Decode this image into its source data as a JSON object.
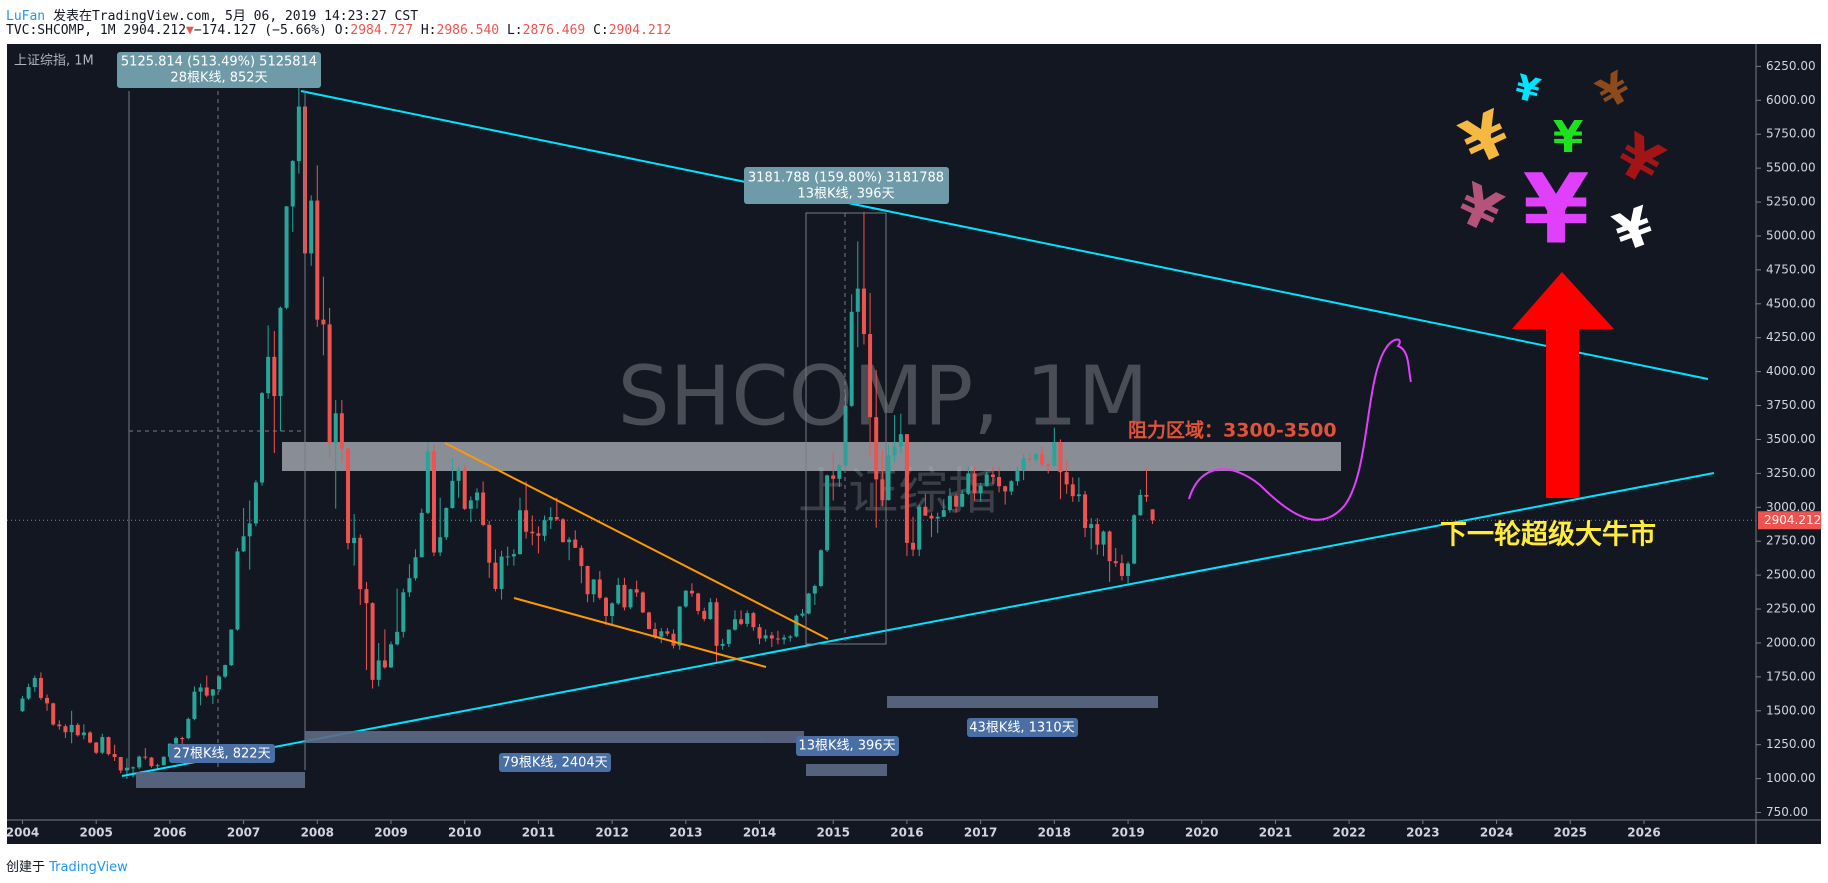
{
  "header": {
    "author": "LuFan",
    "published": "发表在TradingView.com, 5月 06, 2019 14:23:27 CST",
    "symbol": "TVC:SHCOMP, 1M",
    "last": "2904.212",
    "arrow": "▼",
    "change": "−174.127 (−5.66%)",
    "ohlc": [
      {
        "label": "O:",
        "value": "2984.727"
      },
      {
        "label": "H:",
        "value": "2986.540"
      },
      {
        "label": "L:",
        "value": "2876.469"
      },
      {
        "label": "C:",
        "value": "2904.212"
      }
    ]
  },
  "footer": {
    "created": "创建于",
    "brand": "TradingView"
  },
  "chart_data": {
    "type": "candlestick",
    "title": "上证综指, 1M",
    "up_color": "#26a69a",
    "down_color": "#ef5350",
    "grid": false,
    "xlim": [
      2003.79,
      2027.52
    ],
    "xticks": [
      2004,
      2005,
      2006,
      2007,
      2008,
      2009,
      2010,
      2011,
      2012,
      2013,
      2014,
      2015,
      2016,
      2017,
      2018,
      2019,
      2020,
      2021,
      2022,
      2023,
      2024,
      2025,
      2026
    ],
    "ylim": [
      695,
      6415
    ],
    "yticks": [
      {
        "value": 750,
        "label": "750.00"
      },
      {
        "value": 1000,
        "label": "1000.00"
      },
      {
        "value": 1250,
        "label": "1250.00"
      },
      {
        "value": 1500,
        "label": "1500.00"
      },
      {
        "value": 1750,
        "label": "1750.00"
      },
      {
        "value": 2000,
        "label": "2000.00"
      },
      {
        "value": 2250,
        "label": "2250.00"
      },
      {
        "value": 2500,
        "label": "2500.00"
      },
      {
        "value": 2750,
        "label": "2750.00"
      },
      {
        "value": 3000,
        "label": "3000.00"
      },
      {
        "value": 3250,
        "label": "3250.00"
      },
      {
        "value": 3500,
        "label": "3500.00"
      },
      {
        "value": 3750,
        "label": "3750.00"
      },
      {
        "value": 4000,
        "label": "4000.00"
      },
      {
        "value": 4250,
        "label": "4250.00"
      },
      {
        "value": 4500,
        "label": "4500.00"
      },
      {
        "value": 4750,
        "label": "4750.00"
      },
      {
        "value": 5000,
        "label": "5000.00"
      },
      {
        "value": 5250,
        "label": "5250.00"
      },
      {
        "value": 5500,
        "label": "5500.00"
      },
      {
        "value": 5750,
        "label": "5750.00"
      },
      {
        "value": 6000,
        "label": "6000.00"
      },
      {
        "value": 6250,
        "label": "6250.00"
      }
    ],
    "last_price": 2904.212,
    "last_price_color": "#ef5350",
    "x": [
      2004,
      2004.083,
      2004.167,
      2004.25,
      2004.333,
      2004.417,
      2004.5,
      2004.583,
      2004.667,
      2004.75,
      2004.833,
      2004.917,
      2005,
      2005.083,
      2005.167,
      2005.25,
      2005.333,
      2005.417,
      2005.5,
      2005.583,
      2005.667,
      2005.75,
      2005.833,
      2005.917,
      2006,
      2006.083,
      2006.167,
      2006.25,
      2006.333,
      2006.417,
      2006.5,
      2006.583,
      2006.667,
      2006.75,
      2006.833,
      2006.917,
      2007,
      2007.083,
      2007.167,
      2007.25,
      2007.333,
      2007.417,
      2007.5,
      2007.583,
      2007.667,
      2007.75,
      2007.833,
      2007.917,
      2008,
      2008.083,
      2008.167,
      2008.25,
      2008.333,
      2008.417,
      2008.5,
      2008.583,
      2008.667,
      2008.75,
      2008.833,
      2008.917,
      2009,
      2009.083,
      2009.167,
      2009.25,
      2009.333,
      2009.417,
      2009.5,
      2009.583,
      2009.667,
      2009.75,
      2009.833,
      2009.917,
      2010,
      2010.083,
      2010.167,
      2010.25,
      2010.333,
      2010.417,
      2010.5,
      2010.583,
      2010.667,
      2010.75,
      2010.833,
      2010.917,
      2011,
      2011.083,
      2011.167,
      2011.25,
      2011.333,
      2011.417,
      2011.5,
      2011.583,
      2011.667,
      2011.75,
      2011.833,
      2011.917,
      2012,
      2012.083,
      2012.167,
      2012.25,
      2012.333,
      2012.417,
      2012.5,
      2012.583,
      2012.667,
      2012.75,
      2012.833,
      2012.917,
      2013,
      2013.083,
      2013.167,
      2013.25,
      2013.333,
      2013.417,
      2013.5,
      2013.583,
      2013.667,
      2013.75,
      2013.833,
      2013.917,
      2014,
      2014.083,
      2014.167,
      2014.25,
      2014.333,
      2014.417,
      2014.5,
      2014.583,
      2014.667,
      2014.75,
      2014.833,
      2014.917,
      2015,
      2015.083,
      2015.167,
      2015.25,
      2015.333,
      2015.417,
      2015.5,
      2015.583,
      2015.667,
      2015.75,
      2015.833,
      2015.917,
      2016,
      2016.083,
      2016.167,
      2016.25,
      2016.333,
      2016.417,
      2016.5,
      2016.583,
      2016.667,
      2016.75,
      2016.833,
      2016.917,
      2017,
      2017.083,
      2017.167,
      2017.25,
      2017.333,
      2017.417,
      2017.5,
      2017.583,
      2017.667,
      2017.75,
      2017.833,
      2017.917,
      2018,
      2018.083,
      2018.167,
      2018.25,
      2018.333,
      2018.417,
      2018.5,
      2018.583,
      2018.667,
      2018.75,
      2018.833,
      2018.917,
      2019,
      2019.083,
      2019.167,
      2019.25,
      2019.333
    ],
    "open": [
      1497,
      1590,
      1675,
      1742,
      1595,
      1555,
      1399,
      1386,
      1342,
      1396,
      1320,
      1340,
      1266,
      1191,
      1306,
      1181,
      1159,
      1060,
      1080,
      1083,
      1162,
      1155,
      1092,
      1099,
      1161,
      1258,
      1299,
      1298,
      1440,
      1641,
      1672,
      1612,
      1658,
      1752,
      1837,
      2099,
      2675,
      2786,
      2881,
      3183,
      3841,
      4109,
      3820,
      4471,
      5218,
      5552,
      5954,
      4871,
      5261,
      4383,
      4348,
      3472,
      3693,
      3433,
      2736,
      2775,
      2397,
      2293,
      1728,
      1871,
      1820,
      1990,
      2082,
      2373,
      2477,
      2632,
      2959,
      3412,
      2667,
      2779,
      2995,
      3195,
      3277,
      2989,
      3051,
      3109,
      2870,
      2592,
      2398,
      2637,
      2638,
      2655,
      2978,
      2820,
      2808,
      2790,
      2905,
      2928,
      2911,
      2743,
      2762,
      2701,
      2567,
      2359,
      2468,
      2333,
      2199,
      2292,
      2428,
      2262,
      2396,
      2372,
      2225,
      2103,
      2047,
      2086,
      2068,
      1980,
      2269,
      2385,
      2365,
      2236,
      2177,
      2300,
      1979,
      1993,
      2098,
      2175,
      2141,
      2220,
      2116,
      2033,
      2056,
      2033,
      2026,
      2039,
      2048,
      2201,
      2217,
      2364,
      2420,
      2683,
      3235,
      3210,
      3310,
      3748,
      4441,
      4612,
      4277,
      3664,
      3206,
      3053,
      3383,
      3445,
      3539,
      2738,
      2688,
      3004,
      2938,
      2917,
      2930,
      2979,
      3085,
      3005,
      3100,
      3250,
      3104,
      3159,
      3242,
      3223,
      3155,
      3117,
      3192,
      3273,
      3361,
      3349,
      3393,
      3317,
      3307,
      3481,
      3259,
      3169,
      3082,
      3095,
      2847,
      2876,
      2725,
      2821,
      2603,
      2588,
      2494,
      2585,
      2941,
      3091,
      2984.727
    ],
    "high": [
      1610,
      1700,
      1760,
      1783,
      1620,
      1560,
      1430,
      1400,
      1500,
      1410,
      1400,
      1350,
      1270,
      1330,
      1310,
      1250,
      1160,
      1150,
      1090,
      1170,
      1225,
      1160,
      1110,
      1165,
      1260,
      1310,
      1310,
      1450,
      1680,
      1700,
      1760,
      1660,
      1760,
      1840,
      2100,
      2700,
      2995,
      3050,
      3200,
      3850,
      4340,
      4300,
      4480,
      5220,
      5560,
      6124,
      5970,
      5300,
      5520,
      4700,
      4470,
      3790,
      3790,
      3440,
      2950,
      2800,
      2450,
      2300,
      2000,
      2100,
      2010,
      2400,
      2400,
      2580,
      2690,
      2990,
      3480,
      3460,
      3070,
      3000,
      3360,
      3300,
      3310,
      3080,
      3140,
      3190,
      2900,
      2690,
      2680,
      2710,
      2690,
      3070,
      3190,
      2940,
      2860,
      2940,
      3000,
      3070,
      2920,
      2780,
      2830,
      2720,
      2570,
      2470,
      2530,
      2340,
      2300,
      2480,
      2480,
      2400,
      2460,
      2380,
      2230,
      2150,
      2110,
      2110,
      2100,
      2270,
      2390,
      2440,
      2370,
      2260,
      2330,
      2330,
      2030,
      2100,
      2240,
      2240,
      2240,
      2230,
      2140,
      2100,
      2080,
      2090,
      2060,
      2060,
      2210,
      2250,
      2370,
      2430,
      2690,
      3240,
      3410,
      3320,
      3840,
      4570,
      4960,
      5178,
      4580,
      4010,
      3420,
      3460,
      3680,
      3690,
      3540,
      2930,
      3020,
      3100,
      2960,
      2960,
      3060,
      3140,
      3100,
      3130,
      3300,
      3300,
      3180,
      3260,
      3300,
      3300,
      3160,
      3200,
      3300,
      3390,
      3400,
      3400,
      3450,
      3330,
      3587,
      3500,
      3340,
      3220,
      3220,
      3120,
      2920,
      2920,
      2830,
      2830,
      2700,
      2650,
      2600,
      2950,
      3130,
      3288,
      2986.54
    ],
    "low": [
      1490,
      1580,
      1640,
      1580,
      1500,
      1390,
      1360,
      1300,
      1260,
      1310,
      1290,
      1260,
      1180,
      1180,
      1170,
      1130,
      1040,
      998,
      1010,
      1070,
      1140,
      1080,
      1070,
      1095,
      1150,
      1250,
      1240,
      1290,
      1430,
      1540,
      1600,
      1550,
      1640,
      1740,
      1830,
      2090,
      2670,
      2540,
      2860,
      3160,
      3800,
      3400,
      3560,
      4460,
      5030,
      5460,
      4780,
      4780,
      4330,
      4120,
      3360,
      2990,
      3330,
      2690,
      2570,
      2280,
      1800,
      1664,
      1680,
      1810,
      1815,
      1980,
      2040,
      2340,
      2460,
      2630,
      2950,
      2640,
      2640,
      2760,
      2990,
      3070,
      2980,
      2890,
      2990,
      2860,
      2480,
      2380,
      2320,
      2570,
      2570,
      2650,
      2770,
      2720,
      2660,
      2750,
      2840,
      2900,
      2740,
      2610,
      2700,
      2440,
      2300,
      2300,
      2320,
      2130,
      2130,
      2280,
      2240,
      2250,
      2340,
      2220,
      2100,
      2030,
      1999,
      2050,
      1960,
      1950,
      2260,
      2340,
      2210,
      2160,
      2170,
      1849,
      1950,
      1970,
      2090,
      2130,
      2120,
      2090,
      1990,
      2010,
      1970,
      1990,
      1990,
      2010,
      2040,
      2190,
      2210,
      2280,
      2410,
      2670,
      3050,
      3150,
      3290,
      3740,
      4180,
      4200,
      3370,
      2850,
      3010,
      3050,
      3330,
      3400,
      2640,
      2640,
      2640,
      2940,
      2780,
      2810,
      2930,
      2960,
      2960,
      3000,
      3090,
      3050,
      3040,
      3150,
      3170,
      3110,
      3020,
      3090,
      3160,
      3200,
      3330,
      3330,
      3300,
      3250,
      3300,
      3060,
      3100,
      3040,
      3040,
      2780,
      2690,
      2650,
      2640,
      2450,
      2560,
      2460,
      2440,
      2580,
      2940,
      3040,
      2876.469
    ],
    "close": [
      1590,
      1675,
      1742,
      1595,
      1555,
      1399,
      1386,
      1342,
      1396,
      1320,
      1340,
      1266,
      1191,
      1306,
      1181,
      1159,
      1060,
      1080,
      1083,
      1162,
      1155,
      1092,
      1099,
      1161,
      1258,
      1299,
      1298,
      1440,
      1641,
      1672,
      1612,
      1658,
      1752,
      1837,
      2099,
      2675,
      2786,
      2881,
      3183,
      3841,
      4109,
      3820,
      4471,
      5218,
      5552,
      5954,
      4871,
      5261,
      4383,
      4348,
      3472,
      3693,
      3433,
      2736,
      2775,
      2397,
      2293,
      1728,
      1871,
      1820,
      1990,
      2082,
      2373,
      2477,
      2632,
      2959,
      3412,
      2667,
      2779,
      2995,
      3195,
      3277,
      2989,
      3051,
      3109,
      2870,
      2592,
      2398,
      2637,
      2638,
      2655,
      2978,
      2820,
      2808,
      2790,
      2905,
      2928,
      2911,
      2743,
      2762,
      2701,
      2567,
      2359,
      2468,
      2333,
      2199,
      2292,
      2428,
      2262,
      2396,
      2372,
      2225,
      2103,
      2047,
      2086,
      2068,
      1980,
      2269,
      2385,
      2365,
      2236,
      2177,
      2300,
      1979,
      1993,
      2098,
      2175,
      2141,
      2220,
      2116,
      2033,
      2056,
      2033,
      2026,
      2039,
      2048,
      2201,
      2217,
      2364,
      2420,
      2683,
      3235,
      3210,
      3310,
      3748,
      4441,
      4612,
      4277,
      3664,
      3206,
      3053,
      3383,
      3445,
      3539,
      2738,
      2688,
      3004,
      2938,
      2917,
      2930,
      2979,
      3085,
      3005,
      3100,
      3250,
      3104,
      3159,
      3242,
      3223,
      3155,
      3117,
      3192,
      3273,
      3361,
      3349,
      3393,
      3317,
      3307,
      3481,
      3259,
      3169,
      3082,
      3095,
      2847,
      2876,
      2725,
      2821,
      2603,
      2588,
      2494,
      2585,
      2941,
      3091,
      3078,
      2904.212
    ],
    "watermark": "SHCOMP, 1M",
    "watermark_sub": "上证综指",
    "annotations": {
      "measure_1": [
        "5125.814 (513.49%) 5125814",
        "28根K线, 852天"
      ],
      "measure_2": [
        "3181.788 (159.80%) 3181788",
        "13根K线, 396天"
      ],
      "range_1": "27根K线, 822天",
      "range_2": "79根K线, 2404天",
      "range_3": "13根K线, 396天",
      "range_4": "43根K线, 1310天",
      "resistance": "阻力区域：3300-3500",
      "forecast": "下一轮超级大牛市",
      "yen": [
        "¥",
        "¥",
        "¥",
        "¥",
        "¥",
        "¥",
        "¥",
        "¥"
      ]
    }
  }
}
